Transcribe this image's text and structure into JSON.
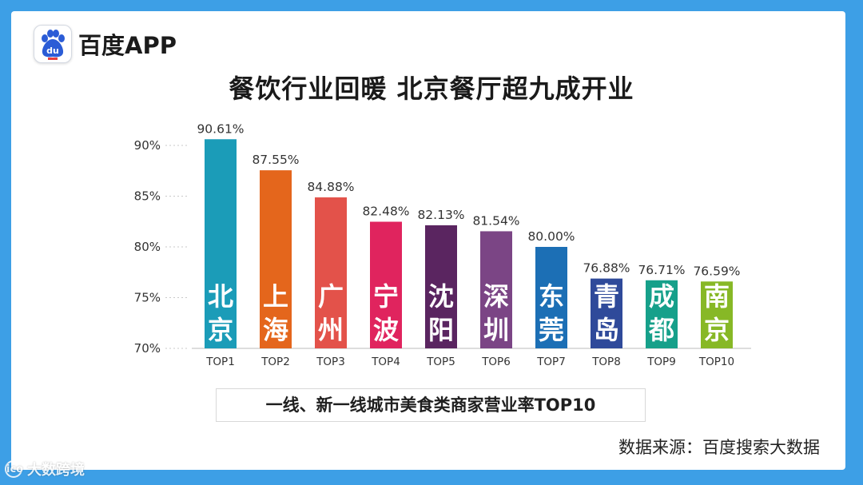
{
  "brand": {
    "logo_text": "百度APP",
    "badge_text": "du"
  },
  "title": "餐饮行业回暖 北京餐厅超九成开业",
  "caption": "一线、新一线城市美食类商家营业率TOP10",
  "source": "数据来源：百度搜索大数据",
  "watermark": {
    "icon_text": "ico",
    "text": "大数跨境"
  },
  "chart_data": {
    "type": "bar",
    "title": "餐饮行业回暖 北京餐厅超九成开业",
    "categories": [
      "TOP1",
      "TOP2",
      "TOP3",
      "TOP4",
      "TOP5",
      "TOP6",
      "TOP7",
      "TOP8",
      "TOP9",
      "TOP10"
    ],
    "cities": [
      "北京",
      "上海",
      "广州",
      "宁波",
      "沈阳",
      "深圳",
      "东莞",
      "青岛",
      "成都",
      "南京"
    ],
    "values": [
      90.61,
      87.55,
      84.88,
      82.48,
      82.13,
      81.54,
      80.0,
      76.88,
      76.71,
      76.59
    ],
    "value_labels": [
      "90.61%",
      "87.55%",
      "84.88%",
      "82.48%",
      "82.13%",
      "81.54%",
      "80.00%",
      "76.88%",
      "76.71%",
      "76.59%"
    ],
    "colors": [
      "#1b9cb8",
      "#e4661c",
      "#e3524a",
      "#e0245e",
      "#5a2560",
      "#7b4585",
      "#1c6fb5",
      "#2f4a9a",
      "#16a08a",
      "#87b826"
    ],
    "yticks": [
      "70%",
      "75%",
      "80%",
      "85%",
      "90%"
    ],
    "ytick_values": [
      70,
      75,
      80,
      85,
      90
    ],
    "ylim": [
      70,
      90
    ],
    "grid": false,
    "legend": "none"
  }
}
